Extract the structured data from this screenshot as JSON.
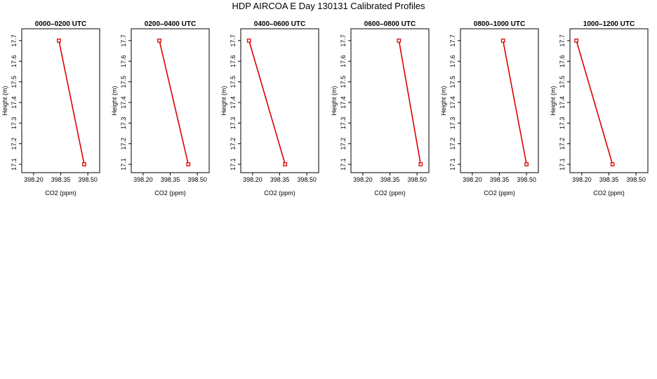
{
  "figure": {
    "title": "HDP AIRCOA E  Day 130131  Calibrated Profiles"
  },
  "style": {
    "series_color": "#dd0000",
    "axis_color": "#000000",
    "background": "#ffffff"
  },
  "chart_data": [
    {
      "type": "line",
      "title": "0000–0200 UTC",
      "xlabel": "CO2 (ppm)",
      "ylabel": "Height (m)",
      "xlim": [
        398.15,
        398.55
      ],
      "ylim": [
        17.08,
        17.72
      ],
      "xticks": [
        "398.20",
        "398.35",
        "398.50"
      ],
      "yticks": [
        "17.1",
        "17.2",
        "17.3",
        "17.4",
        "17.5",
        "17.6",
        "17.7"
      ],
      "grid": false,
      "series": [
        {
          "x": [
            398.34,
            398.48
          ],
          "y": [
            17.7,
            17.1
          ]
        }
      ]
    },
    {
      "type": "line",
      "title": "0200–0400 UTC",
      "xlabel": "CO2 (ppm)",
      "ylabel": "Height (m)",
      "xlim": [
        398.15,
        398.55
      ],
      "ylim": [
        17.08,
        17.72
      ],
      "xticks": [
        "398.20",
        "398.35",
        "398.50"
      ],
      "yticks": [
        "17.1",
        "17.2",
        "17.3",
        "17.4",
        "17.5",
        "17.6",
        "17.7"
      ],
      "grid": false,
      "series": [
        {
          "x": [
            398.29,
            398.45
          ],
          "y": [
            17.7,
            17.1
          ]
        }
      ]
    },
    {
      "type": "line",
      "title": "0400–0600 UTC",
      "xlabel": "CO2 (ppm)",
      "ylabel": "Height (m)",
      "xlim": [
        398.15,
        398.55
      ],
      "ylim": [
        17.08,
        17.72
      ],
      "xticks": [
        "398.20",
        "398.35",
        "398.50"
      ],
      "yticks": [
        "17.1",
        "17.2",
        "17.3",
        "17.4",
        "17.5",
        "17.6",
        "17.7"
      ],
      "grid": false,
      "series": [
        {
          "x": [
            398.18,
            398.38
          ],
          "y": [
            17.7,
            17.1
          ]
        }
      ]
    },
    {
      "type": "line",
      "title": "0600–0800 UTC",
      "xlabel": "CO2 (ppm)",
      "ylabel": "Height (m)",
      "xlim": [
        398.15,
        398.55
      ],
      "ylim": [
        17.08,
        17.72
      ],
      "xticks": [
        "398.20",
        "398.35",
        "398.50"
      ],
      "yticks": [
        "17.1",
        "17.2",
        "17.3",
        "17.4",
        "17.5",
        "17.6",
        "17.7"
      ],
      "grid": false,
      "series": [
        {
          "x": [
            398.4,
            398.52
          ],
          "y": [
            17.7,
            17.1
          ]
        }
      ]
    },
    {
      "type": "line",
      "title": "0800–1000 UTC",
      "xlabel": "CO2 (ppm)",
      "ylabel": "Height (m)",
      "xlim": [
        398.15,
        398.55
      ],
      "ylim": [
        17.08,
        17.72
      ],
      "xticks": [
        "398.20",
        "398.35",
        "398.50"
      ],
      "yticks": [
        "17.1",
        "17.2",
        "17.3",
        "17.4",
        "17.5",
        "17.6",
        "17.7"
      ],
      "grid": false,
      "series": [
        {
          "x": [
            398.37,
            398.5
          ],
          "y": [
            17.7,
            17.1
          ]
        }
      ]
    },
    {
      "type": "line",
      "title": "1000–1200 UTC",
      "xlabel": "CO2 (ppm)",
      "ylabel": "Height (m)",
      "xlim": [
        398.15,
        398.55
      ],
      "ylim": [
        17.08,
        17.72
      ],
      "xticks": [
        "398.20",
        "398.35",
        "398.50"
      ],
      "yticks": [
        "17.1",
        "17.2",
        "17.3",
        "17.4",
        "17.5",
        "17.6",
        "17.7"
      ],
      "grid": false,
      "series": [
        {
          "x": [
            398.17,
            398.37
          ],
          "y": [
            17.7,
            17.1
          ]
        }
      ]
    }
  ]
}
